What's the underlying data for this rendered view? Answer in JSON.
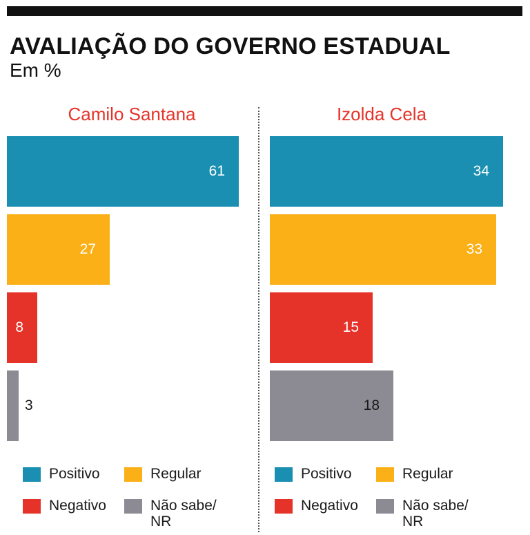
{
  "title": "AVALIAÇÃO DO GOVERNO ESTADUAL",
  "subtitle": "Em %",
  "colors": {
    "positivo": "#1a8fb2",
    "regular": "#fbb017",
    "negativo": "#e5332a",
    "nao_sabe": "#8c8a93",
    "accent": "#e5332a"
  },
  "legend": [
    {
      "label": "Positivo",
      "color": "#1a8fb2"
    },
    {
      "label": "Regular",
      "color": "#fbb017"
    },
    {
      "label": "Negativo",
      "color": "#e5332a"
    },
    {
      "label": "Não sabe/\nNR",
      "color": "#8c8a93"
    }
  ],
  "chart_data": [
    {
      "type": "bar",
      "orientation": "horizontal",
      "title": "Camilo Santana",
      "categories": [
        "Positivo",
        "Regular",
        "Negativo",
        "Não sabe/NR"
      ],
      "values": [
        61,
        27,
        8,
        3
      ],
      "xlim": [
        0,
        61
      ]
    },
    {
      "type": "bar",
      "orientation": "horizontal",
      "title": "Izolda Cela",
      "categories": [
        "Positivo",
        "Regular",
        "Negativo",
        "Não sabe/NR"
      ],
      "values": [
        34,
        33,
        15,
        18
      ],
      "xlim": [
        0,
        34
      ]
    }
  ]
}
